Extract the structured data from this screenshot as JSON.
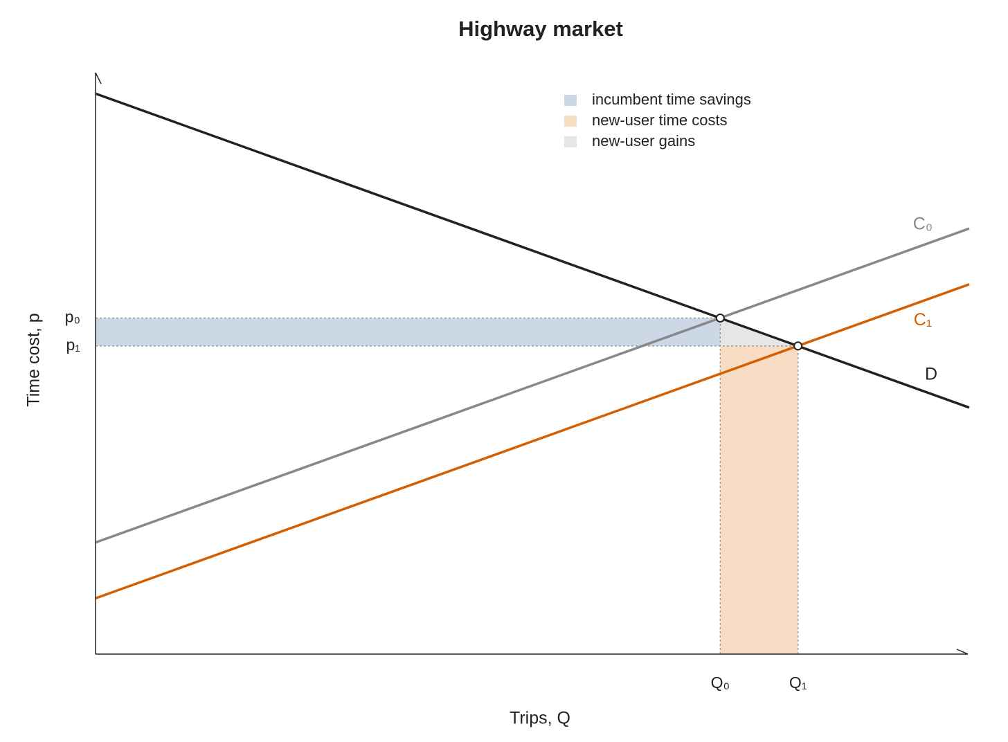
{
  "chart_data": {
    "type": "line",
    "title": "Highway market",
    "x_label": "Trips, Q",
    "y_label": "Time cost, p",
    "x": [
      0,
      10
    ],
    "series": [
      {
        "name": "D",
        "color": "#222222",
        "values": [
          9.64,
          4.24
        ]
      },
      {
        "name": "C₀",
        "color": "#888888",
        "values": [
          1.92,
          7.32
        ]
      },
      {
        "name": "C₁",
        "color": "#d55e00",
        "values": [
          0.96,
          6.36
        ]
      }
    ],
    "points": {
      "x": [
        7.15,
        8.04
      ],
      "y": [
        5.78,
        5.3
      ]
    },
    "xlim": [
      0,
      10
    ],
    "ylim": [
      0,
      10
    ],
    "xticks": [
      {
        "value": 7.15,
        "label": "Q₀"
      },
      {
        "value": 8.04,
        "label": "Q₁"
      }
    ],
    "yticks": [
      {
        "value": 5.78,
        "label": "p₀"
      },
      {
        "value": 5.3,
        "label": "p₁"
      }
    ],
    "areas": [
      {
        "name": "incumbent time savings",
        "color": "#ccd8e5"
      },
      {
        "name": "new-user time costs",
        "color": "#f8ddc4"
      },
      {
        "name": "new-user gains",
        "color": "#e6e6e6"
      }
    ],
    "legend": "upper-center"
  }
}
